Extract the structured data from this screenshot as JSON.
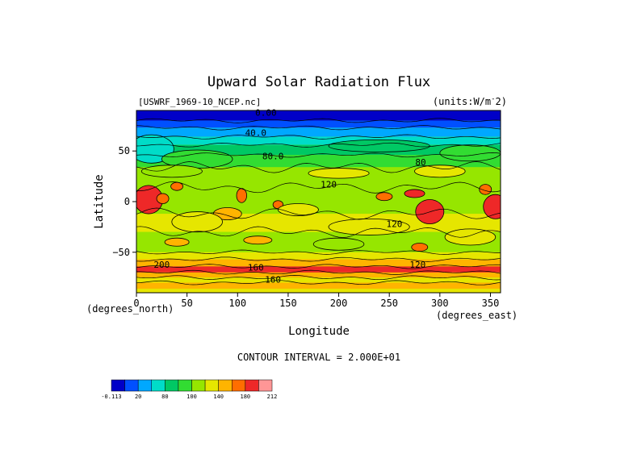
{
  "chart_data": {
    "type": "heatmap",
    "title": "Upward Solar Radiation Flux",
    "subtitle_left": "[USWRF_1969-10_NCEP.nc]",
    "subtitle_right": "(units:W/m^2)",
    "xlabel": "Longitude",
    "ylabel": "Latitude",
    "x_unit": "(degrees_east)",
    "y_unit": "(degrees_north)",
    "xlim": [
      0,
      360
    ],
    "ylim": [
      -90,
      90
    ],
    "x_ticks": [
      0,
      50,
      100,
      150,
      200,
      250,
      300,
      350
    ],
    "y_ticks": [
      -50,
      0,
      50
    ],
    "contour_interval_text": "CONTOUR INTERVAL = 2.000E+01",
    "contour_labels": [
      {
        "text": "0.00",
        "lon": 128,
        "lat": 88
      },
      {
        "text": "40.0",
        "lon": 118,
        "lat": 68
      },
      {
        "text": "80.0",
        "lon": 135,
        "lat": 45
      },
      {
        "text": "80",
        "lon": 281,
        "lat": 39
      },
      {
        "text": "120",
        "lon": 190,
        "lat": 17
      },
      {
        "text": "120",
        "lon": 255,
        "lat": -22
      },
      {
        "text": "120",
        "lon": 278,
        "lat": -62
      },
      {
        "text": "200",
        "lon": 25,
        "lat": -62
      },
      {
        "text": "160",
        "lon": 118,
        "lat": -65
      },
      {
        "text": "160",
        "lon": 135,
        "lat": -77
      }
    ],
    "colorbar": {
      "colors": [
        "#0000c8",
        "#0050ff",
        "#00a8ff",
        "#00dcc8",
        "#00c864",
        "#32dc32",
        "#96e600",
        "#e6e600",
        "#ffb400",
        "#ff6e00",
        "#ee2828",
        "#ff9696"
      ],
      "tick_labels": [
        "-0.113",
        "20",
        "80",
        "100",
        "140",
        "180",
        "212"
      ]
    }
  }
}
